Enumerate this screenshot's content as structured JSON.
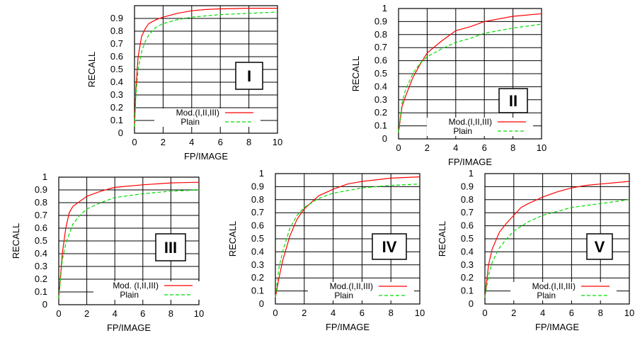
{
  "figure": {
    "colors": {
      "modified": "#ff0000",
      "plain": "#00dd00",
      "grid": "#000000"
    }
  },
  "chart_data": [
    {
      "type": "line",
      "panel_label": "I",
      "xlabel": "FP/IMAGE",
      "ylabel": "RECALL",
      "xlim": [
        0,
        10
      ],
      "ylim": [
        0,
        1
      ],
      "xticks": [
        "0",
        "2",
        "4",
        "6",
        "8",
        "10"
      ],
      "yticks": [
        "0",
        "0.1",
        "0.2",
        "0.3",
        "0.4",
        "0.5",
        "0.6",
        "0.7",
        "0.8",
        "0.9",
        ""
      ],
      "grid": true,
      "legend_position": "bottom-right",
      "series": [
        {
          "name": "Mod.(I,II,III)",
          "x": [
            0,
            0.1,
            0.25,
            0.5,
            0.75,
            1,
            1.5,
            2,
            3,
            4,
            5,
            6,
            8,
            10
          ],
          "y": [
            0.05,
            0.35,
            0.6,
            0.76,
            0.82,
            0.86,
            0.89,
            0.91,
            0.94,
            0.96,
            0.97,
            0.975,
            0.98,
            0.98
          ]
        },
        {
          "name": "Plain",
          "x": [
            0,
            0.1,
            0.25,
            0.5,
            0.75,
            1,
            1.5,
            2,
            3,
            4,
            5,
            6,
            8,
            10
          ],
          "y": [
            0.05,
            0.3,
            0.5,
            0.64,
            0.72,
            0.77,
            0.83,
            0.86,
            0.89,
            0.91,
            0.92,
            0.93,
            0.94,
            0.95
          ]
        }
      ]
    },
    {
      "type": "line",
      "panel_label": "II",
      "xlabel": "FP/IMAGE",
      "ylabel": "RECALL",
      "xlim": [
        0,
        10
      ],
      "ylim": [
        0,
        1
      ],
      "xticks": [
        "0",
        "2",
        "4",
        "6",
        "8",
        "10"
      ],
      "yticks": [
        "0",
        "0.1",
        "0.2",
        "0.3",
        "0.4",
        "0.5",
        "0.6",
        "0.7",
        "0.8",
        "0.9",
        "1"
      ],
      "grid": true,
      "legend_position": "bottom-right",
      "series": [
        {
          "name": "Mod.(I,II,III)",
          "x": [
            0,
            0.25,
            0.5,
            1,
            1.5,
            2,
            3,
            4,
            5,
            6,
            8,
            10
          ],
          "y": [
            0.05,
            0.25,
            0.33,
            0.47,
            0.57,
            0.66,
            0.75,
            0.83,
            0.86,
            0.9,
            0.94,
            0.96
          ]
        },
        {
          "name": "Plain",
          "x": [
            0,
            0.25,
            0.5,
            1,
            1.5,
            2,
            3,
            4,
            5,
            6,
            8,
            10
          ],
          "y": [
            0.05,
            0.28,
            0.38,
            0.5,
            0.58,
            0.63,
            0.69,
            0.74,
            0.77,
            0.81,
            0.85,
            0.88
          ]
        }
      ]
    },
    {
      "type": "line",
      "panel_label": "III",
      "xlabel": "FP/IMAGE",
      "ylabel": "RECALL",
      "xlim": [
        0,
        10
      ],
      "ylim": [
        0,
        1
      ],
      "xticks": [
        "0",
        "2",
        "4",
        "6",
        "8",
        "10"
      ],
      "yticks": [
        "0",
        "0.1",
        "0.2",
        "0.3",
        "0.4",
        "0.5",
        "0.6",
        "0.7",
        "0.8",
        "0.9",
        "1"
      ],
      "grid": true,
      "legend_position": "bottom-right",
      "series": [
        {
          "name": "Mod. (I,II,III)",
          "x": [
            0,
            0.25,
            0.5,
            0.75,
            1,
            1.5,
            2,
            3,
            4,
            6,
            8,
            10
          ],
          "y": [
            0.05,
            0.4,
            0.6,
            0.72,
            0.77,
            0.81,
            0.85,
            0.89,
            0.92,
            0.94,
            0.955,
            0.96
          ]
        },
        {
          "name": "Plain",
          "x": [
            0,
            0.25,
            0.5,
            1,
            1.5,
            2,
            3,
            4,
            6,
            8,
            10
          ],
          "y": [
            0.05,
            0.35,
            0.48,
            0.63,
            0.7,
            0.75,
            0.8,
            0.84,
            0.87,
            0.89,
            0.9
          ]
        }
      ]
    },
    {
      "type": "line",
      "panel_label": "IV",
      "xlabel": "FP/IMAGE",
      "ylabel": "RECALL",
      "xlim": [
        0,
        10
      ],
      "ylim": [
        0,
        1
      ],
      "xticks": [
        "0",
        "2",
        "4",
        "6",
        "8",
        "10"
      ],
      "yticks": [
        "0",
        "0.1",
        "0.2",
        "0.3",
        "0.4",
        "0.5",
        "0.6",
        "0.7",
        "0.8",
        "0.9",
        "1"
      ],
      "grid": true,
      "legend_position": "bottom-right",
      "series": [
        {
          "name": "Mod.(I,II,III)",
          "x": [
            0,
            0.25,
            0.5,
            1,
            1.5,
            2,
            3,
            4,
            5,
            6,
            8,
            10
          ],
          "y": [
            0.05,
            0.2,
            0.33,
            0.52,
            0.65,
            0.73,
            0.83,
            0.88,
            0.92,
            0.94,
            0.965,
            0.975
          ]
        },
        {
          "name": "Plain",
          "x": [
            0,
            0.25,
            0.5,
            1,
            1.5,
            2,
            3,
            4,
            5,
            6,
            8,
            10
          ],
          "y": [
            0.05,
            0.28,
            0.4,
            0.58,
            0.68,
            0.74,
            0.81,
            0.85,
            0.87,
            0.89,
            0.91,
            0.92
          ]
        }
      ]
    },
    {
      "type": "line",
      "panel_label": "V",
      "xlabel": "FP/IMAGE",
      "ylabel": "RECALL",
      "xlim": [
        0,
        10
      ],
      "ylim": [
        0,
        1
      ],
      "xticks": [
        "0",
        "2",
        "4",
        "6",
        "8",
        "10"
      ],
      "yticks": [
        "0",
        "0.1",
        "0.2",
        "0.3",
        "0.4",
        "0.5",
        "0.6",
        "0.7",
        "0.8",
        "0.9",
        "1"
      ],
      "grid": true,
      "legend_position": "bottom-right",
      "series": [
        {
          "name": "Mod.(I,II,III)",
          "x": [
            0,
            0.25,
            0.5,
            1,
            1.5,
            2,
            2.5,
            3,
            4,
            5,
            6,
            7,
            8,
            10
          ],
          "y": [
            0.05,
            0.3,
            0.42,
            0.55,
            0.62,
            0.68,
            0.74,
            0.77,
            0.82,
            0.86,
            0.89,
            0.91,
            0.92,
            0.94
          ]
        },
        {
          "name": "Plain",
          "x": [
            0,
            0.25,
            0.5,
            1,
            1.5,
            2,
            3,
            4,
            5,
            6,
            8,
            10
          ],
          "y": [
            0.05,
            0.22,
            0.32,
            0.43,
            0.5,
            0.56,
            0.63,
            0.68,
            0.71,
            0.74,
            0.77,
            0.8
          ]
        }
      ]
    }
  ]
}
